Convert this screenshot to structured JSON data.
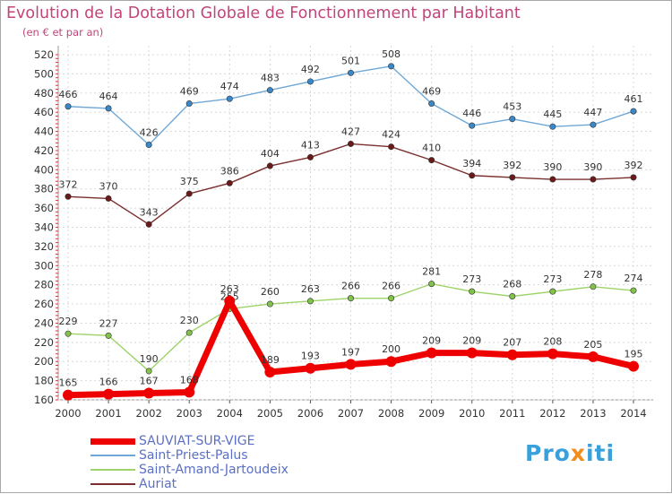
{
  "title": "Evolution de la Dotation Globale de Fonctionnement par Habitant",
  "subtitle": "(en € et par an)",
  "logo": {
    "part1": "Pro",
    "part2": "x",
    "part3": "iti"
  },
  "chart_data": {
    "type": "line",
    "title": "Evolution de la Dotation Globale de Fonctionnement par Habitant",
    "subtitle": "(en € et par an)",
    "x": [
      "2000",
      "2001",
      "2002",
      "2003",
      "2004",
      "2005",
      "2006",
      "2007",
      "2008",
      "2009",
      "2010",
      "2011",
      "2012",
      "2013",
      "2014"
    ],
    "ylim": [
      160,
      520
    ],
    "yticks": [
      160,
      180,
      200,
      220,
      240,
      260,
      280,
      300,
      320,
      340,
      360,
      380,
      400,
      420,
      440,
      460,
      480,
      500,
      520
    ],
    "grid": true,
    "legend_position": "bottom-left",
    "series": [
      {
        "name": "Saint-Priest-Palus",
        "color": "#6fa8d6",
        "marker_color": "#3a88c8",
        "values": [
          466,
          464,
          426,
          469,
          474,
          483,
          492,
          501,
          508,
          469,
          446,
          453,
          445,
          447,
          461
        ]
      },
      {
        "name": "Auriat",
        "color": "#7a2e2e",
        "marker_color": "#6b1a1a",
        "values": [
          372,
          370,
          343,
          375,
          386,
          404,
          413,
          427,
          424,
          410,
          394,
          392,
          390,
          390,
          392
        ]
      },
      {
        "name": "Saint-Amand-Jartoudeix",
        "color": "#9ed36a",
        "marker_color": "#82c24a",
        "values": [
          229,
          227,
          190,
          230,
          255,
          260,
          263,
          266,
          266,
          281,
          273,
          268,
          273,
          278,
          274
        ]
      },
      {
        "name": "SAUVIAT-SUR-VIGE",
        "color": "#ee0000",
        "marker_color": "#ee0000",
        "values": [
          165,
          166,
          167,
          168,
          263,
          189,
          193,
          197,
          200,
          209,
          209,
          207,
          208,
          205,
          195
        ]
      }
    ],
    "legend_order": [
      "SAUVIAT-SUR-VIGE",
      "Saint-Priest-Palus",
      "Saint-Amand-Jartoudeix",
      "Auriat"
    ]
  }
}
